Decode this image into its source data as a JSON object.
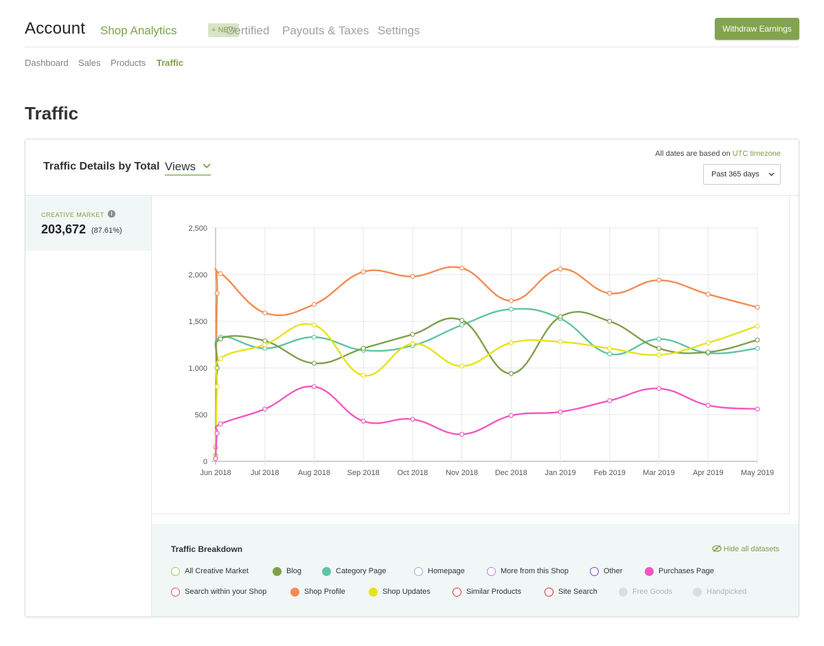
{
  "header": {
    "brand": "Account",
    "nav": [
      {
        "label": "Shop Analytics",
        "active": true
      },
      {
        "label": "Certified"
      },
      {
        "label": "Payouts & Taxes"
      },
      {
        "label": "Settings"
      }
    ],
    "new_badge": "+ NEW",
    "withdraw_label": "Withdraw Earnings"
  },
  "subnav": [
    {
      "label": "Dashboard"
    },
    {
      "label": "Sales"
    },
    {
      "label": "Products"
    },
    {
      "label": "Traffic",
      "active": true
    }
  ],
  "page_title": "Traffic",
  "card": {
    "title": "Traffic Details by Total",
    "metric": "Views",
    "tz_note": "All dates are based on",
    "tz_link": "UTC timezone",
    "range": "Past 365 days"
  },
  "side": {
    "label": "CREATIVE MARKET",
    "value": "203,672",
    "pct": "(87.61%)"
  },
  "breakdown": {
    "title": "Traffic Breakdown",
    "hide_all": "Hide all datasets",
    "items": [
      {
        "label": "All Creative Market",
        "color": "#9bd34f",
        "filled": false,
        "dim": false
      },
      {
        "label": "Blog",
        "color": "#7f9f4a",
        "filled": true,
        "dim": false
      },
      {
        "label": "Category Page",
        "color": "#5ec4a3",
        "filled": true,
        "dim": false
      },
      {
        "label": "Homepage",
        "color": "#9aa7ee",
        "filled": false,
        "dim": false
      },
      {
        "label": "More from this Shop",
        "color": "#c97be0",
        "filled": false,
        "dim": false
      },
      {
        "label": "Other",
        "color": "#7b49b8",
        "filled": false,
        "dim": false
      },
      {
        "label": "Purchases Page",
        "color": "#f257c1",
        "filled": true,
        "dim": false
      },
      {
        "label": "Search within your Shop",
        "color": "#e2595b",
        "filled": false,
        "dim": false
      },
      {
        "label": "Shop Profile",
        "color": "#f28b55",
        "filled": true,
        "dim": false
      },
      {
        "label": "Shop Updates",
        "color": "#e8e21a",
        "filled": true,
        "dim": false
      },
      {
        "label": "Similar Products",
        "color": "#d53535",
        "filled": false,
        "dim": false
      },
      {
        "label": "Site Search",
        "color": "#d12b2b",
        "filled": false,
        "dim": false
      },
      {
        "label": "Free Goods",
        "color": "#dddddd",
        "filled": true,
        "dim": true
      },
      {
        "label": "Handpicked",
        "color": "#dddddd",
        "filled": true,
        "dim": true
      }
    ]
  },
  "chart_data": {
    "type": "line",
    "categories": [
      "Jun 2018",
      "Jul 2018",
      "Aug 2018",
      "Sep 2018",
      "Oct 2018",
      "Nov 2018",
      "Dec 2018",
      "Jan 2019",
      "Feb 2019",
      "Mar 2019",
      "Apr 2019",
      "May 2019"
    ],
    "y_ticks": [
      "0",
      "500",
      "1,000",
      "1,500",
      "2,000",
      "2,500"
    ],
    "ylim": [
      0,
      2500
    ],
    "grid": true,
    "series": [
      {
        "name": "Shop Profile",
        "color": "#f28b55",
        "x": [
          0.0,
          0.03,
          0.1,
          1.0,
          2.0,
          3.0,
          4.0,
          5.0,
          6.0,
          7.0,
          8.0,
          9.0,
          10.0,
          11.0
        ],
        "values": [
          150,
          1800,
          2010,
          1590,
          1680,
          2030,
          1980,
          2070,
          1720,
          2060,
          1800,
          1940,
          1790,
          1650
        ]
      },
      {
        "name": "Category Page",
        "color": "#5ec4a3",
        "x": [
          0.0,
          0.03,
          0.1,
          1.0,
          2.0,
          3.0,
          4.0,
          5.0,
          6.0,
          7.0,
          8.0,
          9.0,
          10.0,
          11.0
        ],
        "values": [
          40,
          1000,
          1330,
          1210,
          1330,
          1190,
          1240,
          1460,
          1630,
          1530,
          1150,
          1310,
          1160,
          1210
        ]
      },
      {
        "name": "Blog",
        "color": "#7f9f4a",
        "x": [
          0.0,
          0.03,
          0.1,
          1.0,
          2.0,
          3.0,
          4.0,
          5.0,
          6.0,
          7.0,
          8.0,
          9.0,
          10.0,
          11.0
        ],
        "values": [
          60,
          1000,
          1310,
          1290,
          1050,
          1210,
          1360,
          1510,
          940,
          1550,
          1500,
          1210,
          1170,
          1300
        ]
      },
      {
        "name": "Shop Updates",
        "color": "#e8e21a",
        "x": [
          0.0,
          0.03,
          0.1,
          1.0,
          2.0,
          3.0,
          4.0,
          5.0,
          6.0,
          7.0,
          8.0,
          9.0,
          10.0,
          11.0
        ],
        "values": [
          50,
          800,
          1100,
          1250,
          1460,
          920,
          1260,
          1020,
          1270,
          1280,
          1210,
          1140,
          1270,
          1450
        ]
      },
      {
        "name": "Purchases Page",
        "color": "#f257c1",
        "x": [
          0.0,
          0.03,
          0.1,
          1.0,
          2.0,
          3.0,
          4.0,
          5.0,
          6.0,
          7.0,
          8.0,
          9.0,
          10.0,
          11.0
        ],
        "values": [
          30,
          300,
          400,
          560,
          800,
          430,
          450,
          290,
          490,
          530,
          650,
          780,
          600,
          560
        ]
      }
    ]
  }
}
